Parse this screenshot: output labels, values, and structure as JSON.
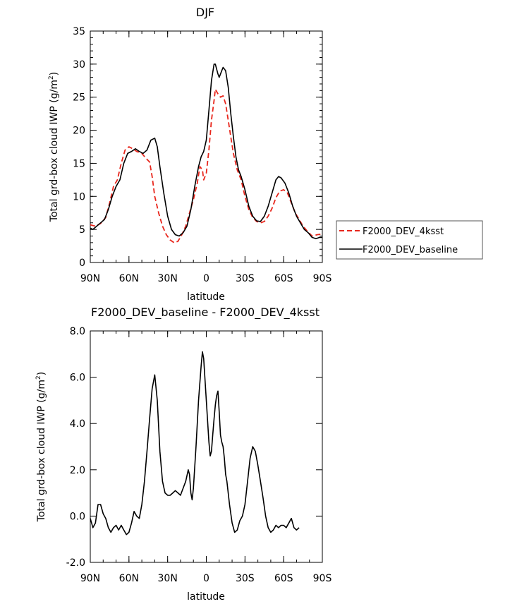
{
  "chart_data": [
    {
      "type": "line",
      "title": "DJF",
      "xlabel": "latitude",
      "ylabel_main": "Total grd-box cloud IWP (g/m",
      "ylabel_sup": "2",
      "ylabel_close": ")",
      "xlim": [
        -90,
        90
      ],
      "ylim": [
        0,
        35
      ],
      "x_ticks": [
        -90,
        -60,
        -30,
        0,
        30,
        60,
        90
      ],
      "x_tick_labels": [
        "90N",
        "60N",
        "30N",
        "0",
        "30S",
        "60S",
        "90S"
      ],
      "y_ticks": [
        0,
        5,
        10,
        15,
        20,
        25,
        30,
        35
      ],
      "y_tick_labels": [
        "0",
        "5",
        "10",
        "15",
        "20",
        "25",
        "30",
        "35"
      ],
      "legend_position": "outside-right",
      "series": [
        {
          "name": "F2000_DEV_4ksst",
          "color": "#e8261c",
          "style": "dashed",
          "points": [
            [
              -90,
              5.7
            ],
            [
              -86,
              5.5
            ],
            [
              -82,
              5.9
            ],
            [
              -78,
              6.8
            ],
            [
              -75,
              9.0
            ],
            [
              -72,
              11.5
            ],
            [
              -69,
              12.5
            ],
            [
              -66,
              15.0
            ],
            [
              -63,
              17.0
            ],
            [
              -60,
              17.5
            ],
            [
              -57,
              17.2
            ],
            [
              -54,
              16.8
            ],
            [
              -50,
              16.5
            ],
            [
              -47,
              15.8
            ],
            [
              -44,
              15.2
            ],
            [
              -42,
              13.0
            ],
            [
              -40,
              10.0
            ],
            [
              -37,
              7.5
            ],
            [
              -34,
              5.5
            ],
            [
              -31,
              4.2
            ],
            [
              -28,
              3.4
            ],
            [
              -25,
              3.0
            ],
            [
              -22,
              3.2
            ],
            [
              -19,
              4.2
            ],
            [
              -16,
              5.5
            ],
            [
              -13,
              7.5
            ],
            [
              -10,
              9.5
            ],
            [
              -7,
              12.0
            ],
            [
              -5,
              14.5
            ],
            [
              -3,
              14.0
            ],
            [
              -2,
              12.5
            ],
            [
              0,
              13.5
            ],
            [
              2,
              17.0
            ],
            [
              4,
              21.5
            ],
            [
              6,
              24.5
            ],
            [
              7,
              26.2
            ],
            [
              9,
              25.5
            ],
            [
              11,
              25.0
            ],
            [
              13,
              25.2
            ],
            [
              15,
              24.0
            ],
            [
              17,
              21.5
            ],
            [
              19,
              19.0
            ],
            [
              21,
              16.5
            ],
            [
              24,
              14.0
            ],
            [
              27,
              12.5
            ],
            [
              30,
              10.0
            ],
            [
              33,
              8.0
            ],
            [
              36,
              6.8
            ],
            [
              39,
              6.2
            ],
            [
              42,
              6.0
            ],
            [
              45,
              6.2
            ],
            [
              48,
              7.0
            ],
            [
              51,
              8.2
            ],
            [
              54,
              9.8
            ],
            [
              57,
              10.8
            ],
            [
              60,
              11.0
            ],
            [
              63,
              10.5
            ],
            [
              66,
              9.0
            ],
            [
              69,
              7.5
            ],
            [
              72,
              6.5
            ],
            [
              75,
              5.5
            ],
            [
              78,
              4.8
            ],
            [
              82,
              4.0
            ],
            [
              86,
              4.2
            ],
            [
              90,
              4.3
            ]
          ]
        },
        {
          "name": "F2000_DEV_baseline",
          "color": "#000000",
          "style": "solid",
          "points": [
            [
              -90,
              5.2
            ],
            [
              -88,
              5.0
            ],
            [
              -85,
              5.5
            ],
            [
              -82,
              6.0
            ],
            [
              -79,
              6.5
            ],
            [
              -76,
              8.0
            ],
            [
              -73,
              10.0
            ],
            [
              -70,
              11.5
            ],
            [
              -67,
              12.5
            ],
            [
              -64,
              15.0
            ],
            [
              -61,
              16.5
            ],
            [
              -58,
              16.8
            ],
            [
              -55,
              17.2
            ],
            [
              -52,
              16.8
            ],
            [
              -49,
              16.5
            ],
            [
              -46,
              17.0
            ],
            [
              -43,
              18.5
            ],
            [
              -40,
              18.8
            ],
            [
              -38,
              17.5
            ],
            [
              -36,
              14.5
            ],
            [
              -33,
              10.5
            ],
            [
              -30,
              7.0
            ],
            [
              -27,
              5.0
            ],
            [
              -24,
              4.2
            ],
            [
              -21,
              4.0
            ],
            [
              -18,
              4.5
            ],
            [
              -15,
              5.5
            ],
            [
              -12,
              8.0
            ],
            [
              -9,
              11.5
            ],
            [
              -6,
              14.5
            ],
            [
              -4,
              16.0
            ],
            [
              -2,
              16.8
            ],
            [
              0,
              18.5
            ],
            [
              2,
              23.0
            ],
            [
              4,
              27.5
            ],
            [
              6,
              30.0
            ],
            [
              7,
              30.0
            ],
            [
              9,
              28.5
            ],
            [
              10,
              28.0
            ],
            [
              12,
              29.0
            ],
            [
              13,
              29.5
            ],
            [
              15,
              29.0
            ],
            [
              17,
              26.5
            ],
            [
              19,
              22.5
            ],
            [
              21,
              19.0
            ],
            [
              23,
              16.0
            ],
            [
              25,
              14.0
            ],
            [
              27,
              13.0
            ],
            [
              30,
              11.0
            ],
            [
              33,
              8.5
            ],
            [
              36,
              7.0
            ],
            [
              39,
              6.3
            ],
            [
              42,
              6.2
            ],
            [
              45,
              7.0
            ],
            [
              48,
              8.5
            ],
            [
              51,
              10.5
            ],
            [
              54,
              12.5
            ],
            [
              56,
              13.0
            ],
            [
              58,
              12.8
            ],
            [
              61,
              12.0
            ],
            [
              64,
              10.5
            ],
            [
              67,
              8.5
            ],
            [
              70,
              7.0
            ],
            [
              73,
              6.0
            ],
            [
              76,
              5.0
            ],
            [
              79,
              4.5
            ],
            [
              82,
              3.8
            ],
            [
              85,
              3.6
            ],
            [
              88,
              3.8
            ],
            [
              90,
              3.8
            ]
          ]
        }
      ]
    },
    {
      "type": "line",
      "title": "F2000_DEV_baseline - F2000_DEV_4ksst",
      "xlabel": "latitude",
      "ylabel_main": "Total grd-box cloud IWP (g/m",
      "ylabel_sup": "2",
      "ylabel_close": ")",
      "xlim": [
        -90,
        90
      ],
      "ylim": [
        -2,
        8
      ],
      "x_ticks": [
        -90,
        -60,
        -30,
        0,
        30,
        60,
        90
      ],
      "x_tick_labels": [
        "90N",
        "60N",
        "30N",
        "0",
        "30S",
        "60S",
        "90S"
      ],
      "y_ticks": [
        -2,
        0,
        2,
        4,
        6,
        8
      ],
      "y_tick_labels": [
        "-2.0",
        "0.0",
        "2.0",
        "4.0",
        "6.0",
        "8.0"
      ],
      "series": [
        {
          "name": "F2000_DEV_baseline - F2000_DEV_4ksst",
          "color": "#000000",
          "style": "solid",
          "points": [
            [
              -90,
              -0.1
            ],
            [
              -88,
              -0.5
            ],
            [
              -86,
              -0.3
            ],
            [
              -84,
              0.5
            ],
            [
              -82,
              0.5
            ],
            [
              -80,
              0.1
            ],
            [
              -78,
              -0.1
            ],
            [
              -76,
              -0.5
            ],
            [
              -74,
              -0.7
            ],
            [
              -72,
              -0.5
            ],
            [
              -70,
              -0.4
            ],
            [
              -68,
              -0.6
            ],
            [
              -66,
              -0.4
            ],
            [
              -64,
              -0.6
            ],
            [
              -62,
              -0.8
            ],
            [
              -60,
              -0.7
            ],
            [
              -58,
              -0.3
            ],
            [
              -56,
              0.2
            ],
            [
              -54,
              0.0
            ],
            [
              -52,
              -0.1
            ],
            [
              -50,
              0.5
            ],
            [
              -48,
              1.5
            ],
            [
              -46,
              2.8
            ],
            [
              -44,
              4.2
            ],
            [
              -42,
              5.5
            ],
            [
              -40,
              6.1
            ],
            [
              -38,
              5.0
            ],
            [
              -36,
              2.8
            ],
            [
              -34,
              1.5
            ],
            [
              -32,
              1.0
            ],
            [
              -30,
              0.9
            ],
            [
              -28,
              0.9
            ],
            [
              -26,
              1.0
            ],
            [
              -24,
              1.1
            ],
            [
              -22,
              1.0
            ],
            [
              -20,
              0.9
            ],
            [
              -18,
              1.2
            ],
            [
              -16,
              1.5
            ],
            [
              -14,
              2.0
            ],
            [
              -13,
              1.8
            ],
            [
              -12,
              1.0
            ],
            [
              -11,
              0.7
            ],
            [
              -10,
              1.2
            ],
            [
              -8,
              3.0
            ],
            [
              -6,
              5.0
            ],
            [
              -4,
              6.5
            ],
            [
              -3,
              7.1
            ],
            [
              -2,
              6.8
            ],
            [
              0,
              5.0
            ],
            [
              2,
              3.2
            ],
            [
              3,
              2.6
            ],
            [
              4,
              2.8
            ],
            [
              5,
              3.5
            ],
            [
              6,
              4.2
            ],
            [
              7,
              4.8
            ],
            [
              8,
              5.2
            ],
            [
              9,
              5.4
            ],
            [
              10,
              4.5
            ],
            [
              11,
              3.5
            ],
            [
              12,
              3.2
            ],
            [
              13,
              3.0
            ],
            [
              14,
              2.5
            ],
            [
              15,
              1.8
            ],
            [
              16,
              1.5
            ],
            [
              18,
              0.5
            ],
            [
              20,
              -0.3
            ],
            [
              22,
              -0.7
            ],
            [
              24,
              -0.6
            ],
            [
              26,
              -0.2
            ],
            [
              28,
              0.0
            ],
            [
              30,
              0.5
            ],
            [
              32,
              1.5
            ],
            [
              34,
              2.5
            ],
            [
              36,
              3.0
            ],
            [
              38,
              2.8
            ],
            [
              40,
              2.2
            ],
            [
              42,
              1.5
            ],
            [
              44,
              0.8
            ],
            [
              46,
              0.0
            ],
            [
              48,
              -0.5
            ],
            [
              50,
              -0.7
            ],
            [
              52,
              -0.6
            ],
            [
              54,
              -0.4
            ],
            [
              56,
              -0.5
            ],
            [
              58,
              -0.4
            ],
            [
              60,
              -0.4
            ],
            [
              62,
              -0.5
            ],
            [
              64,
              -0.3
            ],
            [
              66,
              -0.1
            ],
            [
              68,
              -0.5
            ],
            [
              70,
              -0.6
            ],
            [
              72,
              -0.5
            ]
          ]
        }
      ]
    }
  ]
}
